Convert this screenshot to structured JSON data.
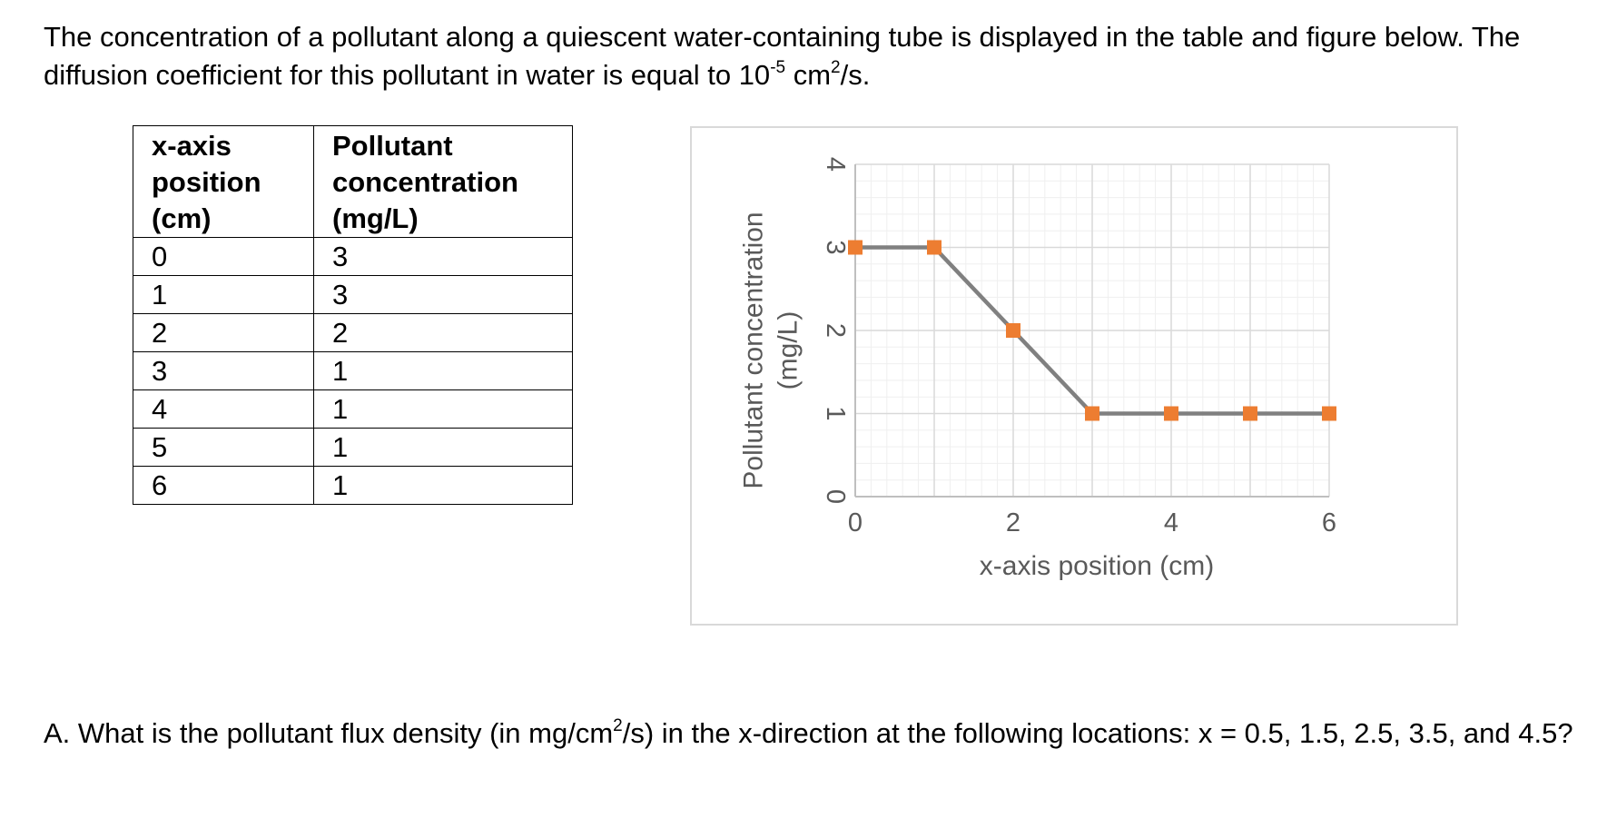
{
  "intro": {
    "text_before": "The concentration of a pollutant along a quiescent water-containing tube is displayed in the table and figure below. The diffusion coefficient for this pollutant in water is equal to 10",
    "exp1": "-5",
    "mid": " cm",
    "exp2": "2",
    "after": "/s."
  },
  "table": {
    "headers": [
      "x-axis position (cm)",
      "Pollutant concentration (mg/L)"
    ],
    "rows": [
      [
        "0",
        "3"
      ],
      [
        "1",
        "3"
      ],
      [
        "2",
        "2"
      ],
      [
        "3",
        "1"
      ],
      [
        "4",
        "1"
      ],
      [
        "5",
        "1"
      ],
      [
        "6",
        "1"
      ]
    ]
  },
  "chart_data": {
    "type": "line",
    "x": [
      0,
      1,
      2,
      3,
      4,
      5,
      6
    ],
    "series": [
      {
        "values": [
          3,
          3,
          2,
          1,
          1,
          1,
          1
        ]
      }
    ],
    "xlabel": "x-axis position (cm)",
    "ylabel": "Pollutant concentration (mg/L)",
    "xlim": [
      0,
      6
    ],
    "ylim": [
      0,
      4
    ],
    "xticks": [
      "0",
      "2",
      "4",
      "6"
    ],
    "yticks": [
      "0",
      "1",
      "2",
      "3",
      "4"
    ],
    "grid": true,
    "line_color": "#808080",
    "marker_color": "#ED7D31",
    "marker": "square"
  },
  "question": {
    "before": "A. What is the pollutant flux density (in mg/cm",
    "exp": "2",
    "after": "/s) in the x-direction at the following locations: x = 0.5, 1.5, 2.5, 3.5, and 4.5?"
  }
}
